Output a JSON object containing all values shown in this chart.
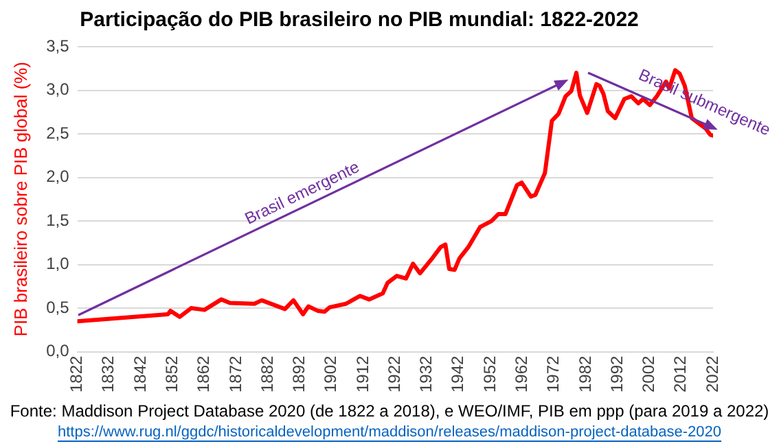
{
  "chart_data": {
    "type": "line",
    "title": "Participação do PIB brasileiro no PIB mundial: 1822-2022",
    "ylabel": "PIB brasileiro sobre PIB global (%)",
    "x": [
      1822,
      1850.5,
      1851.3,
      1854.2,
      1857.8,
      1862,
      1867.3,
      1870,
      1877.7,
      1880,
      1887.3,
      1890,
      1893,
      1894.7,
      1897.6,
      1899.8,
      1901.4,
      1906.5,
      1910.9,
      1913.8,
      1918.1,
      1919.6,
      1922.5,
      1925.4,
      1927.6,
      1929.8,
      1933.4,
      1936.3,
      1937.8,
      1939,
      1940.7,
      1942.2,
      1945,
      1948.7,
      1952.3,
      1954.5,
      1956.7,
      1960.3,
      1961.8,
      1964.7,
      1966.1,
      1969.1,
      1971.3,
      1973.4,
      1975.6,
      1977.4,
      1979,
      1980.1,
      1982.4,
      1985.3,
      1986.3,
      1987.5,
      1988.9,
      1991.2,
      1994.1,
      1996.3,
      1998.5,
      2000,
      2002.1,
      2004.3,
      2007.2,
      2008.2,
      2010.1,
      2011.5,
      2013.1,
      2015.3,
      2017.5,
      2019.7,
      2021.1,
      2022
    ],
    "series": [
      {
        "color": "#ff0000",
        "values": [
          0.35,
          0.43,
          0.47,
          0.4,
          0.5,
          0.48,
          0.6,
          0.56,
          0.55,
          0.59,
          0.49,
          0.59,
          0.43,
          0.52,
          0.47,
          0.46,
          0.51,
          0.55,
          0.64,
          0.6,
          0.67,
          0.79,
          0.87,
          0.84,
          1.01,
          0.9,
          1.06,
          1.2,
          1.23,
          0.95,
          0.94,
          1.07,
          1.2,
          1.43,
          1.5,
          1.58,
          1.58,
          1.91,
          1.94,
          1.78,
          1.8,
          2.05,
          2.65,
          2.73,
          2.93,
          2.99,
          3.2,
          2.94,
          2.74,
          3.07,
          3.05,
          2.96,
          2.76,
          2.68,
          2.9,
          2.93,
          2.85,
          2.9,
          2.83,
          2.93,
          3.1,
          3.02,
          3.23,
          3.19,
          3.05,
          2.68,
          2.62,
          2.56,
          2.49,
          2.48
        ]
      }
    ],
    "xlim": [
      1822,
      2022
    ],
    "xticks": [
      1822,
      1832,
      1842,
      1852,
      1862,
      1872,
      1882,
      1892,
      1902,
      1912,
      1922,
      1932,
      1942,
      1952,
      1962,
      1972,
      1982,
      1992,
      2002,
      2012,
      2022
    ],
    "ylim": [
      0,
      3.5
    ],
    "yticks": [
      {
        "value": 0,
        "label": "0,0"
      },
      {
        "value": 0.5,
        "label": "0,5"
      },
      {
        "value": 1,
        "label": "1,0"
      },
      {
        "value": 1.5,
        "label": "1,5"
      },
      {
        "value": 2,
        "label": "2,0"
      },
      {
        "value": 2.5,
        "label": "2,5"
      },
      {
        "value": 3,
        "label": "3,0"
      },
      {
        "value": 3.5,
        "label": "3,5"
      }
    ],
    "grid": "y",
    "legend": false,
    "marker": "none",
    "line_style": "solid",
    "annotations": [
      "Brasil emergente",
      "Brasil submergente",
      "Fonte: Maddison Project Database 2020 (de 1822 a 2018), e WEO/IMF, PIB em ppp (para 2019 a 2022)",
      "https://www.rug.nl/ggdc/historicaldevelopment/maddison/releases/maddison-project-database-2020"
    ]
  }
}
